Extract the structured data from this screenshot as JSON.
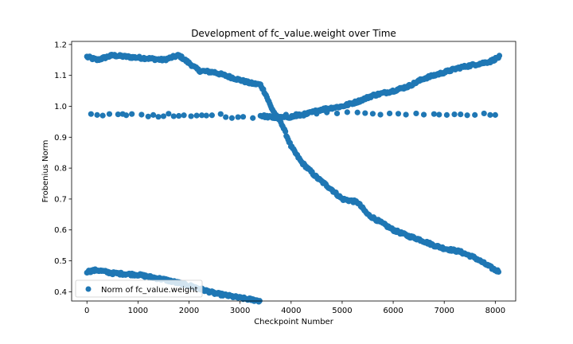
{
  "chart_data": {
    "type": "scatter",
    "title": "Development of fc_value.weight over Time",
    "xlabel": "Checkpoint Number",
    "ylabel": "Frobenius Norm",
    "xlim": [
      -300,
      8400
    ],
    "ylim": [
      0.37,
      1.21
    ],
    "xticks": [
      0,
      1000,
      2000,
      3000,
      4000,
      5000,
      6000,
      7000,
      8000
    ],
    "yticks": [
      0.4,
      0.5,
      0.6,
      0.7,
      0.8,
      0.9,
      1.0,
      1.1,
      1.2
    ],
    "grid": false,
    "legend": {
      "position": "lower-left",
      "entries": [
        "Norm of fc_value.weight"
      ]
    },
    "series_color": "#1f77b4",
    "series": [
      {
        "name": "Norm of fc_value.weight",
        "trends": [
          {
            "x": [
              0,
              200,
              500,
              800,
              1200,
              1500,
              1800,
              2000,
              2200,
              2500,
              2800,
              3000,
              3200,
              3400,
              3500,
              3600,
              3700,
              3800,
              3900,
              4000,
              4200,
              4500,
              4800,
              5000,
              5300,
              5500,
              5800,
              6000,
              6300,
              6500,
              6800,
              7000,
              7300,
              7600,
              7800,
              8000,
              8080
            ],
            "y": [
              1.16,
              1.15,
              1.165,
              1.16,
              1.155,
              1.15,
              1.165,
              1.14,
              1.115,
              1.11,
              1.095,
              1.085,
              1.075,
              1.07,
              1.04,
              1.0,
              0.97,
              0.95,
              0.91,
              0.87,
              0.82,
              0.77,
              0.73,
              0.7,
              0.69,
              0.65,
              0.62,
              0.6,
              0.58,
              0.57,
              0.55,
              0.54,
              0.53,
              0.51,
              0.49,
              0.47,
              0.465
            ]
          },
          {
            "x": [
              0,
              200,
              500,
              1000,
              1500,
              2000,
              2500,
              3000,
              3400
            ],
            "y": [
              0.465,
              0.47,
              0.46,
              0.455,
              0.44,
              0.42,
              0.395,
              0.38,
              0.37
            ]
          },
          {
            "x": [
              3400,
              3700,
              4000,
              4300,
              4600,
              5000,
              5300,
              5600,
              6000,
              6300,
              6600,
              7000,
              7300,
              7600,
              7900,
              8080
            ],
            "y": [
              0.97,
              0.962,
              0.966,
              0.975,
              0.99,
              1.0,
              1.015,
              1.035,
              1.05,
              1.065,
              1.09,
              1.11,
              1.125,
              1.135,
              1.145,
              1.16
            ]
          }
        ],
        "sparse_points": {
          "x": [
            80,
            200,
            310,
            440,
            610,
            700,
            770,
            880,
            1070,
            1200,
            1300,
            1400,
            1500,
            1600,
            1700,
            1800,
            1900,
            2040,
            2150,
            2250,
            2340,
            2450,
            2620,
            2720,
            2840,
            2960,
            3060,
            3250,
            3500,
            3700,
            3900,
            4100,
            4300,
            4500,
            4700,
            4900,
            5100,
            5300,
            5450,
            5600,
            5750,
            5930,
            6100,
            6250,
            6450,
            6600,
            6800,
            6900,
            7050,
            7200,
            7320,
            7450,
            7600,
            7780,
            7900,
            8000
          ],
          "y": [
            0.975,
            0.972,
            0.97,
            0.975,
            0.974,
            0.975,
            0.971,
            0.975,
            0.973,
            0.967,
            0.972,
            0.966,
            0.968,
            0.976,
            0.968,
            0.969,
            0.971,
            0.968,
            0.97,
            0.971,
            0.97,
            0.971,
            0.975,
            0.965,
            0.962,
            0.965,
            0.966,
            0.962,
            0.968,
            0.962,
            0.973,
            0.975,
            0.974,
            0.976,
            0.98,
            0.977,
            0.981,
            0.98,
            0.978,
            0.976,
            0.973,
            0.977,
            0.976,
            0.973,
            0.977,
            0.973,
            0.975,
            0.973,
            0.972,
            0.974,
            0.974,
            0.971,
            0.972,
            0.977,
            0.972,
            0.972
          ]
        }
      }
    ]
  }
}
